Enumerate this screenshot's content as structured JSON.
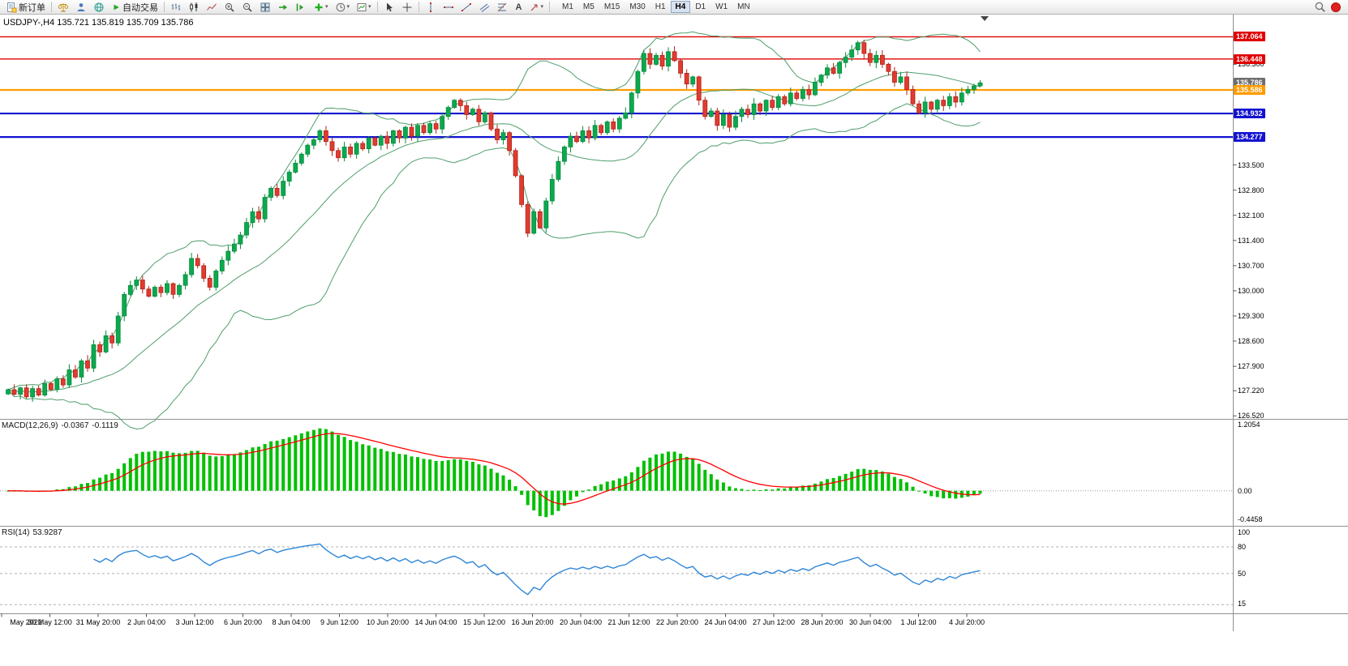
{
  "toolbar": {
    "new_order": "新订单",
    "auto_trading": "自动交易",
    "text_tool": "A",
    "timeframes": [
      "M1",
      "M5",
      "M15",
      "M30",
      "H1",
      "H4",
      "D1",
      "W1",
      "MN"
    ],
    "active_timeframe": "H4"
  },
  "window": {
    "title_line": "USDJPY-,H4  135.721 135.819 135.709 135.786"
  },
  "indicators": {
    "macd": {
      "name": "MACD(12,26,9)",
      "main_value": "-0.0367",
      "signal_value": "-0.1119",
      "axis_labels": [
        "1.2054",
        "0.00",
        "-0.4458"
      ]
    },
    "rsi": {
      "name": "RSI(14)",
      "value": "53.9287",
      "axis_labels": [
        "100",
        "80",
        "50",
        "15"
      ],
      "levels": [
        80,
        50,
        15
      ]
    }
  },
  "price_axis": {
    "regular_labels": [
      "136.300",
      "133.500",
      "132.800",
      "132.100",
      "131.400",
      "130.700",
      "130.000",
      "129.300",
      "128.600",
      "127.900",
      "127.220",
      "126.520"
    ],
    "marked_levels": [
      {
        "label": "137.064",
        "value": 137.064,
        "color": "#e00000",
        "line_width": 1.4,
        "has_line": true
      },
      {
        "label": "136.448",
        "value": 136.448,
        "color": "#e00000",
        "line_width": 1.4,
        "has_line": true
      },
      {
        "label": "135.786",
        "value": 135.786,
        "color": "#6e6e6e",
        "line_width": 0,
        "has_line": false
      },
      {
        "label": "135.586",
        "value": 135.586,
        "color": "#ff9c00",
        "line_width": 2.2,
        "has_line": true
      },
      {
        "label": "134.932",
        "value": 134.932,
        "color": "#1212d0",
        "line_width": 2.2,
        "has_line": true
      },
      {
        "label": "134.277",
        "value": 134.277,
        "color": "#1212d0",
        "line_width": 2.2,
        "has_line": true
      }
    ]
  },
  "time_axis": {
    "labels": [
      "May 2022",
      "30 May 12:00",
      "31 May 20:00",
      "2 Jun 04:00",
      "3 Jun 12:00",
      "6 Jun 20:00",
      "8 Jun 04:00",
      "9 Jun 12:00",
      "10 Jun 20:00",
      "14 Jun 04:00",
      "15 Jun 12:00",
      "16 Jun 20:00",
      "20 Jun 04:00",
      "21 Jun 12:00",
      "22 Jun 20:00",
      "24 Jun 04:00",
      "27 Jun 12:00",
      "28 Jun 20:00",
      "30 Jun 04:00",
      "1 Jul 12:00",
      "4 Jul 20:00"
    ]
  },
  "chart_data": {
    "type": "candlestick",
    "symbol": "USDJPY-",
    "timeframe": "H4",
    "ohlc_display": {
      "open": "135.721",
      "high": "135.819",
      "low": "135.709",
      "close": "135.786"
    },
    "bollinger": {
      "period": 20,
      "deviation": 2
    },
    "sub_panels": [
      {
        "name": "MACD",
        "params": [
          12,
          26,
          9
        ]
      },
      {
        "name": "RSI",
        "params": [
          14
        ]
      }
    ],
    "closes": [
      127.25,
      127.12,
      127.3,
      127.05,
      127.28,
      127.1,
      127.42,
      127.25,
      127.55,
      127.38,
      127.8,
      127.6,
      128.05,
      127.85,
      128.5,
      128.3,
      128.75,
      128.55,
      129.3,
      129.9,
      130.15,
      130.3,
      130.05,
      129.85,
      130.1,
      129.95,
      130.2,
      129.9,
      130.15,
      130.45,
      130.9,
      130.7,
      130.35,
      130.1,
      130.55,
      130.85,
      131.1,
      131.3,
      131.55,
      131.9,
      132.2,
      132.0,
      132.6,
      132.85,
      132.65,
      133.05,
      133.3,
      133.55,
      133.8,
      134.05,
      134.2,
      134.45,
      134.15,
      133.9,
      133.7,
      134.0,
      133.8,
      134.1,
      133.95,
      134.25,
      134.05,
      134.3,
      134.1,
      134.45,
      134.25,
      134.55,
      134.3,
      134.6,
      134.4,
      134.65,
      134.5,
      134.85,
      135.1,
      135.3,
      135.15,
      134.9,
      135.05,
      134.7,
      134.95,
      134.5,
      134.2,
      134.4,
      133.9,
      133.2,
      132.4,
      131.6,
      132.2,
      131.75,
      132.5,
      133.1,
      133.6,
      134.0,
      134.3,
      134.15,
      134.45,
      134.25,
      134.6,
      134.4,
      134.7,
      134.5,
      134.8,
      134.95,
      135.5,
      136.1,
      136.6,
      136.3,
      136.55,
      136.25,
      136.65,
      136.4,
      136.05,
      135.75,
      135.95,
      135.3,
      134.85,
      135.0,
      134.6,
      134.9,
      134.55,
      134.85,
      135.05,
      134.9,
      135.2,
      135.0,
      135.3,
      135.1,
      135.4,
      135.2,
      135.5,
      135.35,
      135.6,
      135.45,
      135.8,
      136.0,
      136.2,
      136.05,
      136.35,
      136.5,
      136.7,
      136.9,
      136.6,
      136.35,
      136.55,
      136.3,
      136.1,
      135.8,
      135.95,
      135.6,
      135.2,
      134.95,
      135.25,
      135.05,
      135.3,
      135.15,
      135.4,
      135.25,
      135.5,
      135.6,
      135.7,
      135.786
    ],
    "colors": {
      "bull": "#0ca94f",
      "bull_stroke": "#058a3b",
      "bear": "#e13b30",
      "bear_stroke": "#b02318",
      "bands": "#4f9e6b",
      "macd_hist": "#00c000",
      "macd_signal": "#ff0000",
      "rsi_line": "#2f86d6",
      "zero_line": "#999999",
      "level_line": "#b0b0b0"
    }
  }
}
